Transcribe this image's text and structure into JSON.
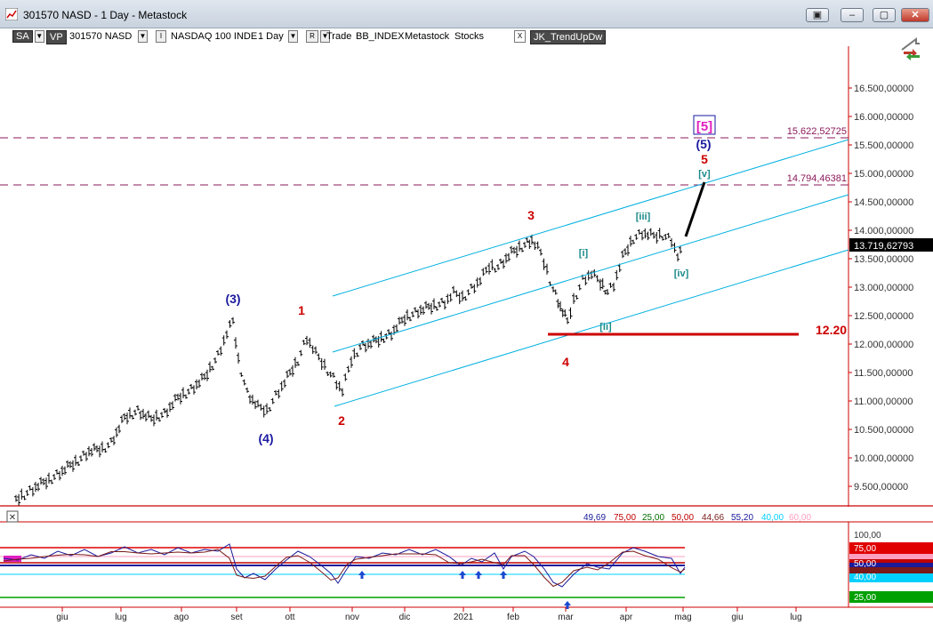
{
  "window": {
    "title": "301570 NASD - 1 Day - Metastock",
    "buttons": [
      "▣",
      "–",
      "▢",
      "✕"
    ]
  },
  "toolbar": {
    "sa": "SA",
    "vp": "VP",
    "symbol": "301570 NASD",
    "i_label": "I",
    "instrument": "NASDAQ 100 INDE",
    "period": "1 Day",
    "r_label": "R",
    "template": "Trade",
    "indicator": "BB_INDEX",
    "source": "Metastock",
    "category": "Stocks",
    "x_label": "X",
    "expert": "JK_TrendUpDw"
  },
  "price_axis": {
    "ticks": [
      "16.500,00000",
      "16.000,00000",
      "15.500,00000",
      "15.000,00000",
      "14.500,00000",
      "14.000,00000",
      "13.500,00000",
      "13.000,00000",
      "12.500,00000",
      "12.000,00000",
      "11.500,00000",
      "11.000,00000",
      "10.500,00000",
      "10.000,00000",
      "9.500,00000"
    ],
    "last_price": "13.719,62793"
  },
  "levels": {
    "upper": "15.622,52725",
    "lower": "14.794,46381",
    "support": "12.20"
  },
  "wave_labels": {
    "w3_blue": "(3)",
    "w4_blue": "(4)",
    "w5_blue": "(5)",
    "w5_box": "[5]",
    "r1": "1",
    "r2": "2",
    "r3": "3",
    "r4": "4",
    "r5": "5",
    "i": "[i]",
    "ii": "[ii]",
    "iii": "[iii]",
    "iv": "[iv]",
    "v": "[v]"
  },
  "indicator_panel": {
    "values": [
      {
        "text": "49,69",
        "color": "#1a1a9a"
      },
      {
        "text": "75,00",
        "color": "#c00000"
      },
      {
        "text": "25,00",
        "color": "#007000"
      },
      {
        "text": "50,00",
        "color": "#c00000"
      },
      {
        "text": "44,66",
        "color": "#7a1a1a"
      },
      {
        "text": "55,20",
        "color": "#1a1a9a"
      },
      {
        "text": "40,00",
        "color": "#00d0ff"
      },
      {
        "text": "60,00",
        "color": "#ff9fc0"
      }
    ],
    "axis": {
      "t100": "100,00",
      "t75": "75,00",
      "t60": "60,00",
      "t50": "50,00",
      "t40": "40,00",
      "t25": "25,00"
    }
  },
  "date_axis": {
    "months": [
      "giu",
      "lug",
      "ago",
      "set",
      "ott",
      "nov",
      "dic",
      "2021",
      "feb",
      "mar",
      "apr",
      "mag",
      "giu",
      "lug"
    ]
  },
  "colors": {
    "resistance": "#8b1a5a",
    "channel": "#00b0e0",
    "support_line": "#cc0000",
    "wave_blue": "#1a1aa0",
    "wave_red": "#cc0000",
    "wave_teal": "#1a8a8a",
    "wave_magenta": "#e020c0"
  }
}
